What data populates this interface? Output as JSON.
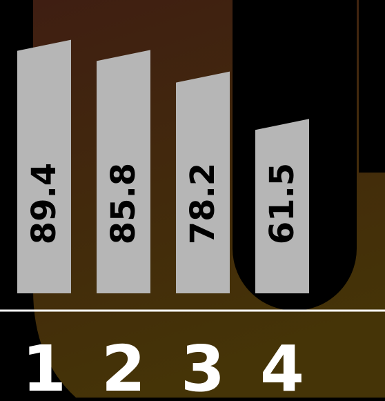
{
  "chart_data": {
    "type": "bar",
    "categories": [
      "1",
      "2",
      "3",
      "4"
    ],
    "values": [
      89.4,
      85.8,
      78.2,
      61.5
    ],
    "value_labels": [
      "89.4",
      "85.8",
      "78.2",
      "61.5"
    ],
    "title": "",
    "xlabel": "",
    "ylabel": "",
    "ylim": [
      0,
      100
    ],
    "grid": false,
    "legend": "none",
    "highlighted_category": "4"
  },
  "colors": {
    "background": "#000000",
    "glow_top": "#3f1e12",
    "glow_bottom": "#453407",
    "bar": "#b6b6b6",
    "value_text": "#000000",
    "category_text": "#ffffff",
    "baseline": "#ffffff",
    "highlight": "#000000"
  }
}
